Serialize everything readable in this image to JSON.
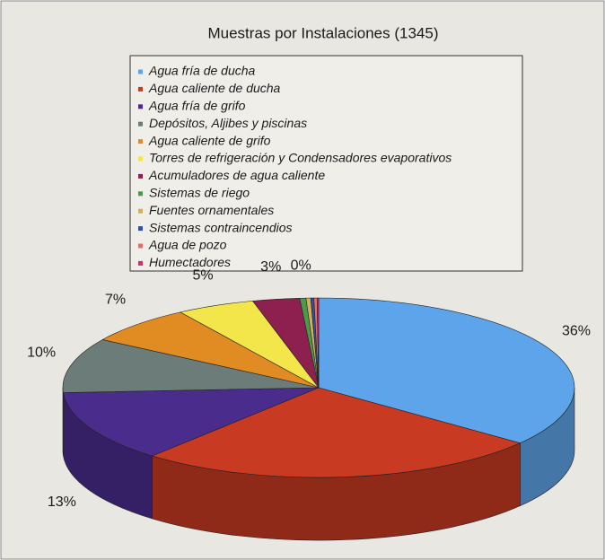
{
  "chart_data": {
    "type": "pie3d",
    "title": "Muestras por Instalaciones (1345)",
    "categories": [
      "Agua fría de ducha",
      "Agua caliente de ducha",
      "Agua fría de grifo",
      "Depósitos, Aljibes y piscinas",
      "Agua caliente de grifo",
      "Torres de refrigeración y Condensadores evaporativos",
      "Acumuladores de agua caliente",
      "Sistemas de riego",
      "Fuentes ornamentales",
      "Sistemas contraincendios",
      "Agua de pozo",
      "Humectadores"
    ],
    "values": [
      36,
      26,
      13,
      10,
      7,
      5,
      3,
      0.4,
      0.3,
      0.2,
      0.2,
      0.1
    ],
    "value_labels": [
      "36%",
      "26%",
      "13%",
      "10%",
      "7%",
      "5%",
      "3%",
      "0%",
      null,
      null,
      null,
      null
    ],
    "colors": [
      "#5ea4ea",
      "#c83a22",
      "#4a2c8c",
      "#6c7c78",
      "#e08c22",
      "#f2e64a",
      "#8e2050",
      "#4a9a4a",
      "#d0b060",
      "#3050a0",
      "#e07070",
      "#d03070"
    ]
  }
}
